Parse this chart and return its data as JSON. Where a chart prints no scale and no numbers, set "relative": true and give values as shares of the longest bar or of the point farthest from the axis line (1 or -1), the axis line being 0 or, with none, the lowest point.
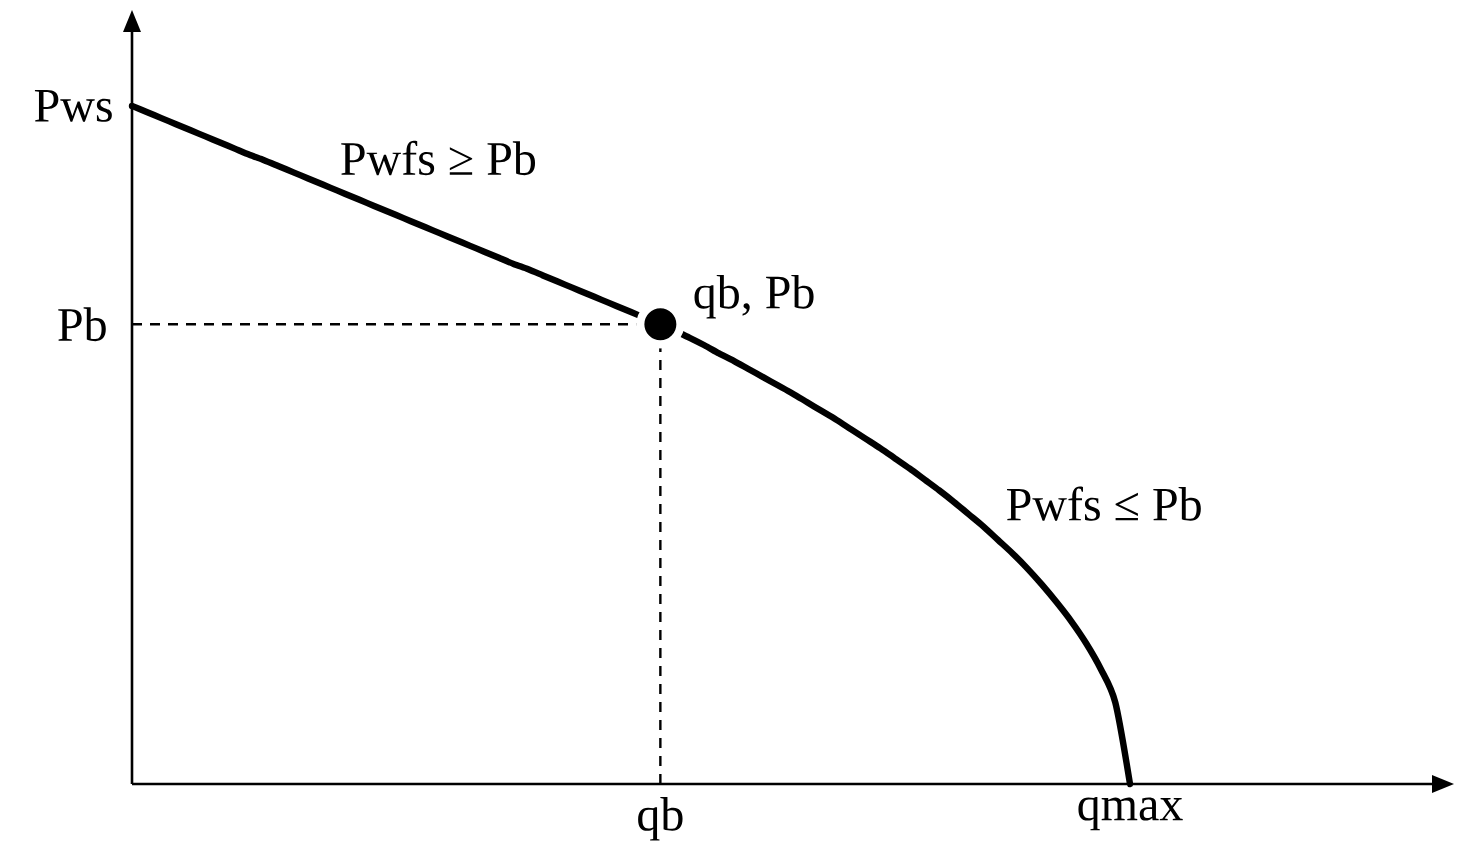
{
  "chart_data": {
    "type": "line",
    "relative": true,
    "categories": [
      null,
      null,
      null,
      null,
      null,
      null,
      null,
      null,
      null,
      null,
      null,
      null,
      null,
      null,
      null,
      null,
      null,
      null,
      null,
      null,
      null,
      null,
      null,
      null,
      null,
      null,
      null,
      null,
      null,
      null,
      null,
      null,
      null,
      null,
      null,
      null,
      "qb",
      null,
      null,
      null,
      null,
      null,
      null,
      null,
      null,
      null,
      null,
      null,
      null,
      null,
      null,
      null,
      null,
      null,
      null,
      null,
      null,
      null,
      null,
      null,
      null,
      null,
      null,
      null,
      null,
      null,
      null,
      null,
      "qmax"
    ],
    "series": [
      {
        "name": "Pwfs ≥ Pb",
        "color": "#000000",
        "values": [
          1,
          0.991,
          0.982,
          0.973,
          0.964,
          0.955,
          0.946,
          0.937,
          0.928,
          0.92,
          0.911,
          0.902,
          0.893,
          0.884,
          0.875,
          0.866,
          0.857,
          0.848,
          0.839,
          0.83,
          0.821,
          0.812,
          0.803,
          0.794,
          0.785,
          0.776,
          0.767,
          0.759,
          0.75,
          0.741,
          0.732,
          0.723,
          0.714,
          0.705,
          0.696,
          0.687,
          0.678,
          null,
          null,
          null,
          null,
          null,
          null,
          null,
          null,
          null,
          null,
          null,
          null,
          null,
          null,
          null,
          null,
          null,
          null,
          null,
          null,
          null,
          null,
          null,
          null,
          null,
          null,
          null,
          null,
          null,
          null,
          null,
          null
        ]
      },
      {
        "name": "Pwfs ≤ Pb",
        "color": "#000000",
        "values": [
          null,
          null,
          null,
          null,
          null,
          null,
          null,
          null,
          null,
          null,
          null,
          null,
          null,
          null,
          null,
          null,
          null,
          null,
          null,
          null,
          null,
          null,
          null,
          null,
          null,
          null,
          null,
          null,
          null,
          null,
          null,
          null,
          null,
          null,
          null,
          null,
          0.678,
          0.668,
          0.658,
          0.647,
          0.635,
          0.624,
          0.612,
          0.6,
          0.588,
          0.576,
          0.563,
          0.55,
          0.537,
          0.523,
          0.509,
          0.495,
          0.48,
          0.465,
          0.449,
          0.433,
          0.416,
          0.398,
          0.38,
          0.36,
          0.34,
          0.318,
          0.294,
          0.268,
          0.24,
          0.208,
          0.17,
          0.12,
          0
        ]
      },
      {
        "type": "scatter",
        "color": "#000000",
        "marker": "circle",
        "values": [
          null,
          null,
          null,
          null,
          null,
          null,
          null,
          null,
          null,
          null,
          null,
          null,
          null,
          null,
          null,
          null,
          null,
          null,
          null,
          null,
          null,
          null,
          null,
          null,
          null,
          null,
          null,
          null,
          null,
          null,
          null,
          null,
          null,
          null,
          null,
          null,
          0.678,
          null,
          null,
          null,
          null,
          null,
          null,
          null,
          null,
          null,
          null,
          null,
          null,
          null,
          null,
          null,
          null,
          null,
          null,
          null,
          null,
          null,
          null,
          null,
          null,
          null,
          null,
          null,
          null,
          null,
          null,
          null,
          null
        ]
      }
    ],
    "ref_lines": [
      {
        "axis": "y",
        "value": 0.678,
        "label": "Pb",
        "line_style": "dashed"
      },
      {
        "axis": "x",
        "value": "qb",
        "line_style": "dashed"
      }
    ],
    "annotations": [
      "Pws",
      {
        "text": "qb, Pb",
        "x": "qb",
        "y": 0.678
      }
    ]
  }
}
